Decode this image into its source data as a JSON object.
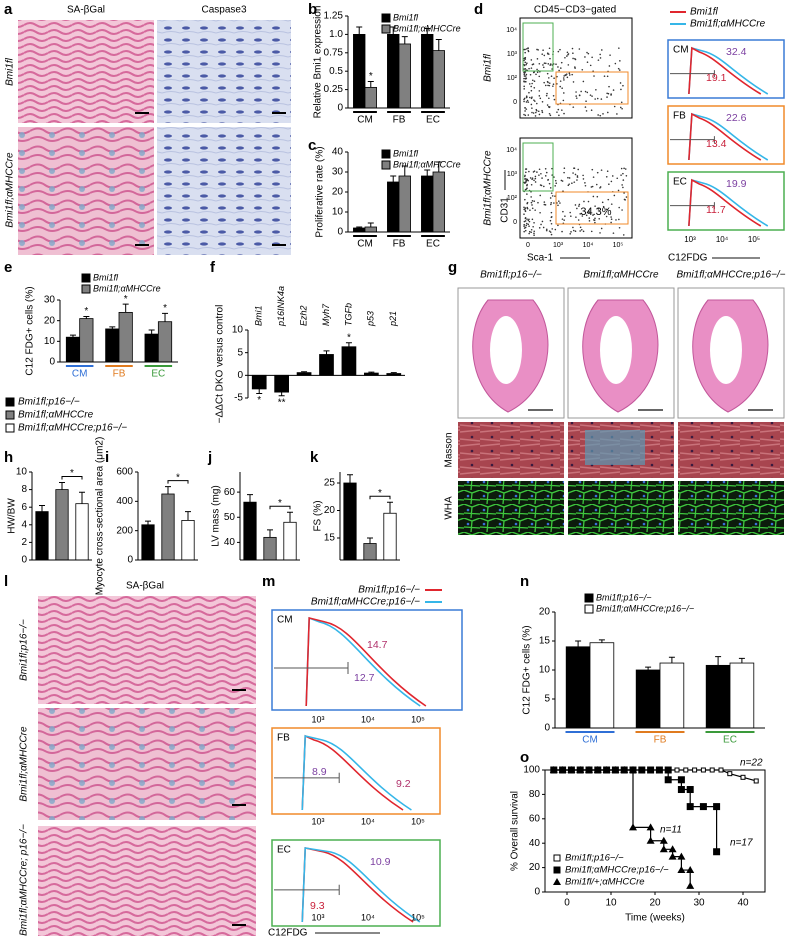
{
  "figure": {
    "panel_labels": [
      "a",
      "b",
      "c",
      "d",
      "e",
      "f",
      "g",
      "h",
      "i",
      "j",
      "k",
      "l",
      "m",
      "n",
      "o"
    ],
    "a": {
      "columns": [
        "SA-βGal",
        "Caspase3"
      ],
      "rows": [
        "Bmi1fl",
        "Bmi1fl;αMHCCre"
      ]
    },
    "d": {
      "gate": "CD45−CD3−gated",
      "rows": [
        "Bmi1fl",
        "Bmi1fl;αMHCCre"
      ],
      "gate_percent": "34.3%",
      "y_label": "CD31",
      "x_label": "Sca-1",
      "scatter_yticks": [
        "10⁴",
        "10³",
        "10²",
        "0"
      ],
      "scatter_xticks": [
        "0",
        "10³",
        "10⁴",
        "10⁵"
      ],
      "hist_xticks": [
        "10³",
        "10⁴",
        "10⁵"
      ],
      "hist_x_label": "C12FDG",
      "legend": [
        {
          "name": "Bmi1fl",
          "color": "#e0262e"
        },
        {
          "name": "Bmi1fl;αMHCCre",
          "color": "#35b6e8"
        }
      ],
      "hist": [
        {
          "cell": "CM",
          "values": [
            32.4,
            19.1
          ]
        },
        {
          "cell": "FB",
          "values": [
            22.6,
            13.4
          ]
        },
        {
          "cell": "EC",
          "values": [
            19.9,
            11.7
          ]
        }
      ]
    },
    "g": {
      "columns": [
        "Bmi1fl;p16−/−",
        "Bmi1fl;αMHCCre",
        "Bmi1fl;αMHCCre;p16−/−"
      ],
      "rows": [
        "Masson",
        "WHA"
      ]
    },
    "legend": [
      {
        "name": "Bmi1fl;p16−/−",
        "color": "#000000"
      },
      {
        "name": "Bmi1fl;αMHCCre",
        "color": "#808080"
      },
      {
        "name": "Bmi1fl;αMHCCre;p16−/−",
        "color": "#ffffff"
      }
    ],
    "l": {
      "title": "SA-βGal",
      "rows": [
        "Bmi1fl;p16−/−",
        "Bmi1fl;αMHCCre",
        "Bmi1fl;αMHCCre; p16−/−"
      ]
    },
    "m": {
      "legend": [
        {
          "name": "Bmi1fl;p16−/−",
          "color": "#e0262e"
        },
        {
          "name": "Bmi1fl;αMHCCre;p16−/−",
          "color": "#35b6e8"
        }
      ],
      "hist": [
        {
          "cell": "CM",
          "values": [
            14.7,
            12.7
          ]
        },
        {
          "cell": "FB",
          "values": [
            8.9,
            9.2
          ]
        },
        {
          "cell": "EC",
          "values": [
            10.9,
            9.3
          ]
        }
      ],
      "xticks": [
        "10³",
        "10⁴",
        "10⁵"
      ],
      "x_label": "C12FDG"
    }
  },
  "chart_data": [
    {
      "type": "bar",
      "y_label": "Relative Bmi1 expression",
      "categories": [
        "CM",
        "FB",
        "EC"
      ],
      "series": [
        {
          "name": "Bmi1fl",
          "color": "#000000",
          "values": [
            1,
            1,
            1
          ],
          "errors": [
            0.1,
            0.1,
            0.08
          ]
        },
        {
          "name": "Bmi1fl;αMHCCre",
          "color": "#808080",
          "values": [
            0.28,
            0.87,
            0.78
          ],
          "errors": [
            0.08,
            0.1,
            0.15
          ]
        }
      ],
      "ylim": [
        0,
        1.25
      ],
      "yticks": [
        0,
        0.25,
        0.5,
        0.75,
        {
          "value": 1,
          "label": "1.0"
        },
        1.25
      ],
      "annotations": [
        "*"
      ]
    },
    {
      "type": "bar",
      "y_label": "Proliferative rate (%)",
      "categories": [
        "CM",
        "FB",
        "EC"
      ],
      "series": [
        {
          "name": "Bmi1fl",
          "color": "#000000",
          "values": [
            2,
            25,
            28
          ],
          "errors": [
            0.5,
            3,
            3
          ]
        },
        {
          "name": "Bmi1fl;αMHCCre",
          "color": "#808080",
          "values": [
            2.5,
            28,
            30
          ],
          "errors": [
            2,
            5,
            5
          ]
        }
      ],
      "ylim": [
        0,
        40
      ],
      "yticks": [
        0,
        10,
        20,
        30,
        40
      ]
    },
    {
      "type": "bar",
      "y_label": "C12 FDG+ cells (%)",
      "categories": [
        "CM",
        "FB",
        "EC"
      ],
      "category_colors": [
        "#2f6fd6",
        "#e07b1f",
        "#3a9a3a"
      ],
      "series": [
        {
          "name": "Bmi1fl",
          "color": "#000000",
          "values": [
            12,
            16,
            13.5
          ],
          "errors": [
            1,
            1,
            2
          ]
        },
        {
          "name": "Bmi1fl;αMHCCre",
          "color": "#808080",
          "values": [
            21,
            24,
            19.5
          ],
          "errors": [
            1,
            4,
            4
          ]
        }
      ],
      "ylim": [
        0,
        30
      ],
      "yticks": [
        0,
        10,
        20,
        30
      ],
      "annotations": [
        "*",
        "*",
        "*"
      ]
    },
    {
      "type": "bar",
      "y_label": "−ΔΔCt DKO versus control",
      "categories": [
        "Bmi1",
        "p16INK4a",
        "Ezh2",
        "Myh7",
        "TGFb",
        "p53",
        "p21"
      ],
      "values": [
        -3,
        -3.7,
        0.6,
        4.6,
        6.3,
        0.5,
        0.4
      ],
      "errors": [
        1,
        0.8,
        0.2,
        0.8,
        0.9,
        0.2,
        0.2
      ],
      "color": "#000000",
      "ylim": [
        -5,
        10
      ],
      "yticks": [
        -5,
        0,
        5,
        10
      ],
      "annotations": [
        "*",
        "**",
        "*"
      ]
    },
    {
      "type": "bar",
      "y_label": "HW/BW",
      "categories": [
        null,
        null,
        null
      ],
      "values": [
        5.5,
        8,
        6.4
      ],
      "errors": [
        0.7,
        0.8,
        1.3
      ],
      "colors": [
        "#000000",
        "#808080",
        "#ffffff"
      ],
      "ylim": [
        0,
        10
      ],
      "yticks": [
        0,
        2,
        4,
        6,
        8,
        10
      ],
      "annotations": [
        "*"
      ]
    },
    {
      "type": "bar",
      "y_label": "Myocyte cross-sectional area (μm2)",
      "categories": [
        null,
        null,
        null
      ],
      "values": [
        240,
        450,
        270
      ],
      "errors": [
        25,
        50,
        60
      ],
      "colors": [
        "#000000",
        "#808080",
        "#ffffff"
      ],
      "ylim": [
        0,
        600
      ],
      "yticks": [
        0,
        200,
        400,
        600
      ],
      "annotations": [
        "*"
      ]
    },
    {
      "type": "bar",
      "y_label": "LV mass (mg)",
      "categories": [
        null,
        null,
        null
      ],
      "values": [
        56,
        42,
        48
      ],
      "errors": [
        3,
        3,
        4
      ],
      "colors": [
        "#000000",
        "#808080",
        "#ffffff"
      ],
      "ylim": [
        33,
        68
      ],
      "yticks": [
        40,
        50,
        60
      ],
      "annotations": [
        "*"
      ]
    },
    {
      "type": "bar",
      "y_label": "FS (%)",
      "categories": [
        null,
        null,
        null
      ],
      "values": [
        25,
        14,
        19.5
      ],
      "errors": [
        1.5,
        1,
        2
      ],
      "colors": [
        "#000000",
        "#808080",
        "#ffffff"
      ],
      "ylim": [
        11,
        27
      ],
      "yticks": [
        15,
        20,
        25
      ],
      "annotations": [
        "*"
      ]
    },
    {
      "type": "bar",
      "y_label": "C12 FDG+ cells (%)",
      "categories": [
        "CM",
        "FB",
        "EC"
      ],
      "category_colors": [
        "#2f6fd6",
        "#e07b1f",
        "#3a9a3a"
      ],
      "series": [
        {
          "name": "Bmi1fl;p16−/−",
          "color": "#000000",
          "values": [
            14,
            10,
            10.8
          ],
          "errors": [
            1,
            0.5,
            1.5
          ]
        },
        {
          "name": "Bmi1fl;αMHCCre;p16−/−",
          "color": "#ffffff",
          "values": [
            14.7,
            11.2,
            11.2
          ],
          "errors": [
            0.5,
            1,
            0.8
          ]
        }
      ],
      "ylim": [
        0,
        20
      ],
      "yticks": [
        0,
        5,
        10,
        15,
        20
      ]
    },
    {
      "type": "line",
      "x_label": "Time (weeks)",
      "y_label": "% Overall survival",
      "xlim": [
        -5,
        45
      ],
      "xticks": [
        0,
        10,
        20,
        30,
        40
      ],
      "ylim": [
        0,
        100
      ],
      "yticks": [
        0,
        20,
        40,
        60,
        80,
        100
      ],
      "series": [
        {
          "name": "Bmi1fl;p16−/−",
          "marker": "square-open",
          "color": "#000000",
          "x": [
            -3,
            -1,
            1,
            3,
            5,
            7,
            9,
            11,
            13,
            15,
            17,
            19,
            21,
            23,
            25,
            27,
            29,
            31,
            33,
            35,
            37,
            40,
            43
          ],
          "values": [
            100,
            100,
            100,
            100,
            100,
            100,
            100,
            100,
            100,
            100,
            100,
            100,
            100,
            100,
            100,
            100,
            100,
            100,
            100,
            100,
            97,
            94,
            91
          ]
        },
        {
          "name": "Bmi1fl;αMHCCre;p16−/−",
          "marker": "square",
          "color": "#000000",
          "x": [
            -3,
            -1,
            1,
            3,
            5,
            7,
            9,
            11,
            13,
            15,
            17,
            19,
            21,
            23,
            23,
            26,
            26,
            28,
            28,
            31,
            34,
            34
          ],
          "values": [
            100,
            100,
            100,
            100,
            100,
            100,
            100,
            100,
            100,
            100,
            100,
            100,
            100,
            100,
            92,
            92,
            84,
            84,
            70,
            70,
            70,
            33
          ]
        },
        {
          "name": "Bmi1fl/+;αMHCCre",
          "marker": "triangle",
          "color": "#000000",
          "x": [
            -3,
            -1,
            1,
            3,
            5,
            7,
            9,
            11,
            13,
            15,
            15,
            19,
            19,
            22,
            22,
            24,
            24,
            26,
            26,
            28,
            28
          ],
          "values": [
            100,
            100,
            100,
            100,
            100,
            100,
            100,
            100,
            100,
            100,
            53,
            53,
            42,
            42,
            35,
            35,
            29,
            29,
            18,
            18,
            5
          ]
        }
      ],
      "annotations": [
        "n=22",
        "n=17",
        "n=11"
      ]
    }
  ]
}
